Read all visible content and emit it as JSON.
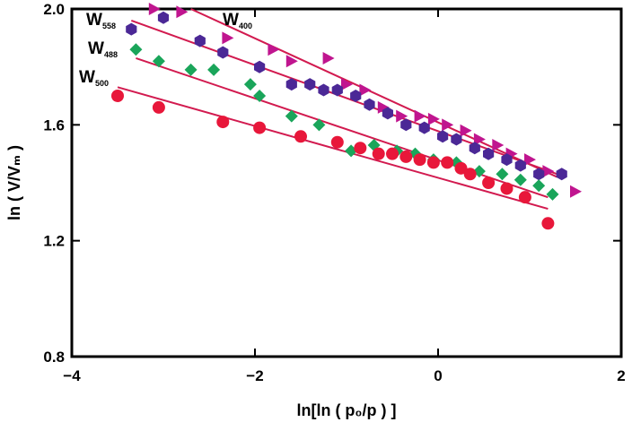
{
  "chart_data": {
    "type": "scatter",
    "title": "",
    "xlabel": "ln[ln ( p₀/p ) ]",
    "ylabel": "ln ( V/Vₘ )",
    "xlim": [
      -4,
      2
    ],
    "ylim": [
      0.8,
      2.0
    ],
    "xticks": [
      "−4",
      "−2",
      "0",
      "2"
    ],
    "yticks": [
      "0.8",
      "1.2",
      "1.6",
      "2.0"
    ],
    "grid": false,
    "legend": "inline labels at upper-left",
    "series": [
      {
        "name": "W400",
        "label_main": "W",
        "label_sub": "400",
        "color": "#c0158f",
        "marker": "triangle-right",
        "x": [
          -3.1,
          -2.8,
          -2.3,
          -1.8,
          -1.6,
          -1.2,
          -1.0,
          -0.8,
          -0.6,
          -0.4,
          -0.2,
          -0.05,
          0.1,
          0.3,
          0.45,
          0.65,
          0.8,
          1.0,
          1.2,
          1.5
        ],
        "y": [
          2.0,
          1.99,
          1.9,
          1.86,
          1.82,
          1.83,
          1.74,
          1.72,
          1.66,
          1.63,
          1.63,
          1.62,
          1.6,
          1.58,
          1.55,
          1.53,
          1.5,
          1.48,
          1.44,
          1.37
        ],
        "fit": [
          [
            -2.7,
            2.0
          ],
          [
            1.3,
            1.42
          ]
        ]
      },
      {
        "name": "W558",
        "label_main": "W",
        "label_sub": "558",
        "color": "#4b2896",
        "marker": "hexagon",
        "x": [
          -3.35,
          -3.0,
          -2.6,
          -2.35,
          -1.95,
          -1.6,
          -1.4,
          -1.25,
          -1.1,
          -0.9,
          -0.75,
          -0.55,
          -0.35,
          -0.15,
          0.05,
          0.2,
          0.4,
          0.55,
          0.75,
          0.9,
          1.1,
          1.35
        ],
        "y": [
          1.93,
          1.97,
          1.89,
          1.85,
          1.8,
          1.74,
          1.74,
          1.72,
          1.72,
          1.7,
          1.67,
          1.64,
          1.6,
          1.59,
          1.56,
          1.55,
          1.52,
          1.5,
          1.48,
          1.46,
          1.43,
          1.43
        ],
        "fit": [
          [
            -3.35,
            1.96
          ],
          [
            1.3,
            1.43
          ]
        ]
      },
      {
        "name": "W488",
        "label_main": "W",
        "label_sub": "488",
        "color": "#1aa55a",
        "marker": "diamond",
        "x": [
          -3.3,
          -3.05,
          -2.7,
          -2.45,
          -2.05,
          -1.95,
          -1.6,
          -1.3,
          -0.95,
          -0.7,
          -0.45,
          -0.25,
          -0.05,
          0.2,
          0.45,
          0.7,
          0.9,
          1.1,
          1.25
        ],
        "y": [
          1.86,
          1.82,
          1.79,
          1.79,
          1.74,
          1.7,
          1.63,
          1.6,
          1.51,
          1.53,
          1.51,
          1.5,
          1.48,
          1.47,
          1.44,
          1.43,
          1.41,
          1.39,
          1.36
        ],
        "fit": [
          [
            -3.3,
            1.83
          ],
          [
            1.2,
            1.35
          ]
        ]
      },
      {
        "name": "W500",
        "label_main": "W",
        "label_sub": "500",
        "color": "#e8173a",
        "marker": "circle",
        "x": [
          -3.5,
          -3.05,
          -2.35,
          -1.95,
          -1.5,
          -1.1,
          -0.85,
          -0.65,
          -0.5,
          -0.35,
          -0.2,
          -0.05,
          0.1,
          0.25,
          0.35,
          0.55,
          0.75,
          0.95,
          1.2
        ],
        "y": [
          1.7,
          1.66,
          1.61,
          1.59,
          1.56,
          1.54,
          1.52,
          1.5,
          1.5,
          1.49,
          1.48,
          1.47,
          1.47,
          1.45,
          1.43,
          1.4,
          1.38,
          1.35,
          1.26
        ],
        "fit": [
          [
            -3.5,
            1.73
          ],
          [
            1.2,
            1.31
          ]
        ]
      }
    ]
  }
}
